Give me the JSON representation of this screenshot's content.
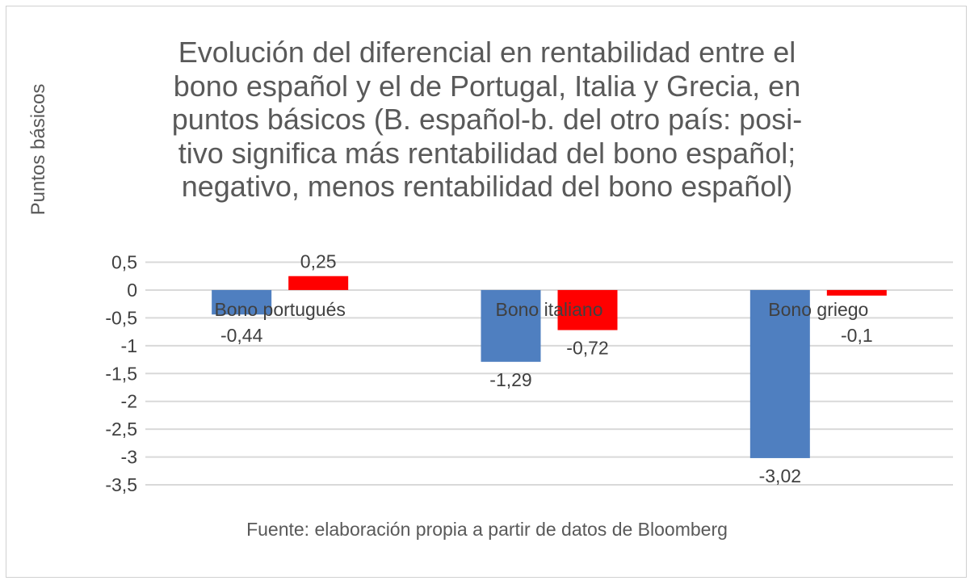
{
  "chart_data": {
    "type": "bar",
    "title": "Evolución del diferencial en rentabilidad entre el\nbono español y el de Portugal, Italia y Grecia, en\npuntos básicos (B. español-b. del otro país: posi-\ntivo significa más rentabilidad del bono español;\nnegativo, menos rentabilidad del bono español)",
    "ylabel": "Puntos básicos",
    "xlabel": "",
    "source": "Fuente: elaboración propia a partir de datos de Bloomberg",
    "categories": [
      "Bono portugués",
      "Bono italiano",
      "Bono griego"
    ],
    "series": [
      {
        "values": [
          -0.44,
          -1.29,
          -3.02
        ],
        "labels": [
          "-0,44",
          "-1,29",
          "-3,02"
        ],
        "color": "#4F7FC0"
      },
      {
        "values": [
          0.25,
          -0.72,
          -0.1
        ],
        "labels": [
          "0,25",
          "-0,72",
          "-0,1"
        ],
        "color": "#FF0000"
      }
    ],
    "ylim": [
      -3.5,
      0.5
    ],
    "yticks": [
      0.5,
      0,
      -0.5,
      -1,
      -1.5,
      -2,
      -2.5,
      -3,
      -3.5
    ],
    "ytick_labels": [
      "0,5",
      "0",
      "-0,5",
      "-1",
      "-1,5",
      "-2",
      "-2,5",
      "-3",
      "-3,5"
    ],
    "grid": true,
    "legend": "none"
  }
}
